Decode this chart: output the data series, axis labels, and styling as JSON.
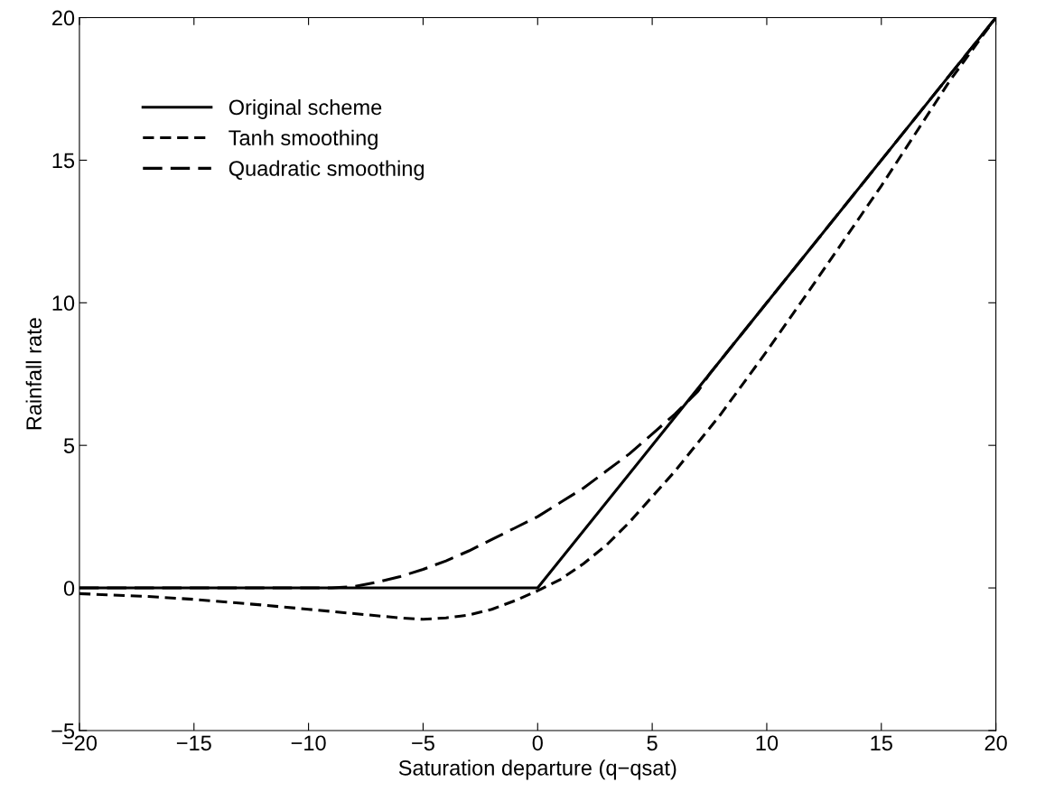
{
  "chart_data": {
    "type": "line",
    "xlabel": "Saturation departure (q−qsat)",
    "ylabel": "Rainfall rate",
    "xlim": [
      -20,
      20
    ],
    "ylim": [
      -5,
      20
    ],
    "xticks": [
      -20,
      -15,
      -10,
      -5,
      0,
      5,
      10,
      15,
      20
    ],
    "yticks": [
      -5,
      0,
      5,
      10,
      15,
      20
    ],
    "grid": false,
    "legend": "top left",
    "marker": "none",
    "series": [
      {
        "name": "Original scheme",
        "color": "#000000",
        "line_style": "solid",
        "x": [
          -20,
          0,
          20
        ],
        "values": [
          0,
          0,
          20
        ]
      },
      {
        "name": "Tanh smoothing",
        "color": "#000000",
        "line_style": "dashed",
        "x": [
          -20,
          -17,
          -15,
          -12,
          -10,
          -8,
          -6,
          -5,
          -4,
          -3,
          -2,
          -1,
          0,
          1,
          2,
          3,
          4,
          5,
          6,
          7,
          8,
          10,
          12,
          15,
          18,
          20
        ],
        "values": [
          -0.2,
          -0.3,
          -0.4,
          -0.6,
          -0.75,
          -0.9,
          -1.05,
          -1.1,
          -1.05,
          -0.95,
          -0.75,
          -0.45,
          -0.1,
          0.3,
          0.85,
          1.5,
          2.3,
          3.2,
          4.1,
          5.1,
          6.1,
          8.3,
          10.6,
          14.1,
          17.8,
          20
        ]
      },
      {
        "name": "Quadratic smoothing",
        "color": "#000000",
        "line_style": "dashed",
        "x": [
          -20,
          -9,
          -8,
          -7,
          -6,
          -5,
          -4,
          -3,
          -2,
          -1,
          0,
          1,
          2,
          3,
          4,
          5,
          6,
          7,
          7.5,
          10,
          15,
          20
        ],
        "values": [
          0,
          0,
          0.05,
          0.2,
          0.4,
          0.65,
          0.95,
          1.3,
          1.7,
          2.1,
          2.5,
          3.0,
          3.5,
          4.1,
          4.7,
          5.4,
          6.1,
          6.9,
          7.5,
          10,
          15,
          20
        ]
      }
    ]
  }
}
